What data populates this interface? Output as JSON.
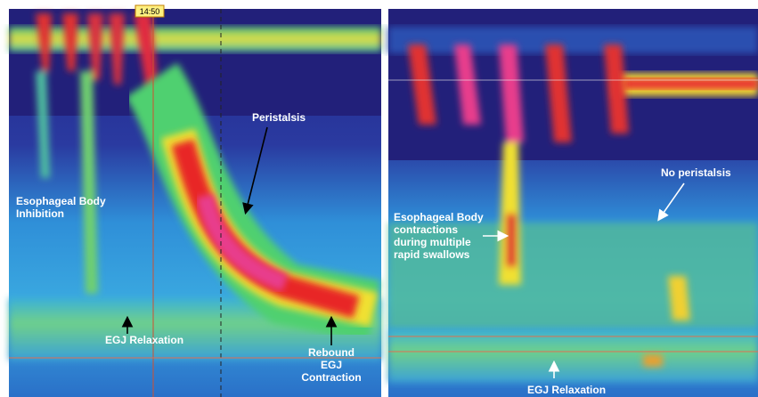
{
  "marker_time": "14:50",
  "left_panel": {
    "labels": [
      {
        "lines": [
          "Esophageal Body",
          "Inhibition"
        ]
      },
      {
        "lines": [
          "Peristalsis"
        ]
      },
      {
        "lines": [
          "EGJ Relaxation"
        ]
      },
      {
        "lines": [
          "Rebound",
          "EGJ",
          "Contraction"
        ]
      }
    ]
  },
  "right_panel": {
    "labels": [
      {
        "lines": [
          "Esophageal Body",
          "contractions",
          "during multiple",
          "rapid swallows"
        ]
      },
      {
        "lines": [
          "No peristalsis"
        ]
      },
      {
        "lines": [
          "EGJ Relaxation"
        ]
      }
    ]
  }
}
